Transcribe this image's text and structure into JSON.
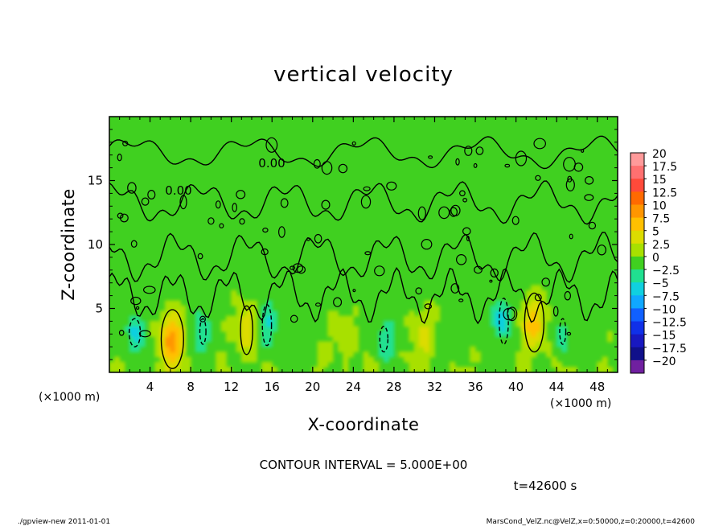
{
  "chart_data": {
    "type": "heatmap",
    "title": "vertical velocity",
    "xlabel": "X-coordinate",
    "ylabel": "Z-coordinate",
    "x_unit": "(×1000 m)",
    "y_unit": "(×1000 m)",
    "xlim": [
      0,
      50
    ],
    "ylim": [
      0,
      20
    ],
    "x_ticks": [
      "4",
      "8",
      "12",
      "16",
      "20",
      "24",
      "28",
      "32",
      "36",
      "40",
      "44",
      "48"
    ],
    "x_tick_values": [
      4,
      8,
      12,
      16,
      20,
      24,
      28,
      32,
      36,
      40,
      44,
      48
    ],
    "y_ticks": [
      "5",
      "10",
      "15"
    ],
    "y_tick_values": [
      5,
      10,
      15
    ],
    "colorbar": {
      "labels": [
        "20",
        "17.5",
        "15",
        "12.5",
        "10",
        "7.5",
        "5",
        "2.5",
        "0",
        "−2.5",
        "−5",
        "−7.5",
        "−10",
        "−12.5",
        "−15",
        "−17.5",
        "−20"
      ],
      "colors": [
        "#ff9a9a",
        "#ff7070",
        "#ff4a3a",
        "#ff6a00",
        "#ff9600",
        "#ffc000",
        "#dcdc00",
        "#a8e000",
        "#40d020",
        "#20e090",
        "#10d0e0",
        "#10a8ff",
        "#1060ff",
        "#1030e8",
        "#1818c0",
        "#10108a",
        "#7020a0"
      ]
    },
    "field": {
      "background_value": 0,
      "updrafts": [
        {
          "x": 6.2,
          "z": 2.5,
          "peak": 9
        },
        {
          "x": 13.5,
          "z": 3.5,
          "peak": 5
        },
        {
          "x": 41.8,
          "z": 3.8,
          "peak": 7.5
        },
        {
          "x": 31,
          "z": 3,
          "peak": 4
        },
        {
          "x": 23,
          "z": 3,
          "peak": 3
        }
      ],
      "downdrafts": [
        {
          "x": 2.5,
          "z": 3.0,
          "peak": -4
        },
        {
          "x": 15.5,
          "z": 3.5,
          "peak": -5
        },
        {
          "x": 9,
          "z": 3,
          "peak": -3.5
        },
        {
          "x": 27,
          "z": 2.5,
          "peak": -3
        },
        {
          "x": 38.8,
          "z": 4.0,
          "peak": -5
        },
        {
          "x": 44.5,
          "z": 3.0,
          "peak": -3
        }
      ]
    },
    "contour_labels": [
      "0.00",
      "0.00"
    ],
    "contour_interval": "CONTOUR INTERVAL = 5.000E+00",
    "time": "t=42600 s"
  },
  "footer": {
    "left": "./gpview-new  2011-01-01",
    "right": "MarsCond_VelZ.nc@VelZ,x=0:50000,z=0:20000,t=42600"
  }
}
